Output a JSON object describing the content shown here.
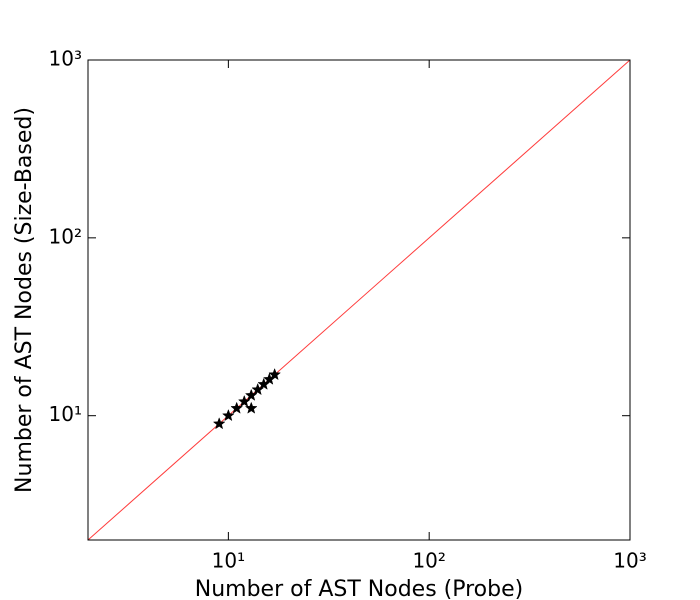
{
  "chart_data": {
    "type": "scatter",
    "xlabel": "Number of AST Nodes (Probe)",
    "ylabel": "Number of AST Nodes (Size-Based)",
    "xscale": "log",
    "yscale": "log",
    "xlim": [
      2,
      1000
    ],
    "ylim": [
      2,
      1000
    ],
    "xticks": [
      {
        "value": 10,
        "label": "10¹"
      },
      {
        "value": 100,
        "label": "10²"
      },
      {
        "value": 1000,
        "label": "10³"
      }
    ],
    "yticks": [
      {
        "value": 10,
        "label": "10¹"
      },
      {
        "value": 100,
        "label": "10²"
      },
      {
        "value": 1000,
        "label": "10³"
      }
    ],
    "marker": "star",
    "color": "#000000",
    "identity_line_color": "#ff3b3b",
    "x": [
      9,
      10,
      11,
      12,
      13,
      13,
      14,
      15,
      16,
      17
    ],
    "y": [
      9,
      10,
      11,
      12,
      13,
      11,
      14,
      15,
      16,
      17
    ]
  }
}
